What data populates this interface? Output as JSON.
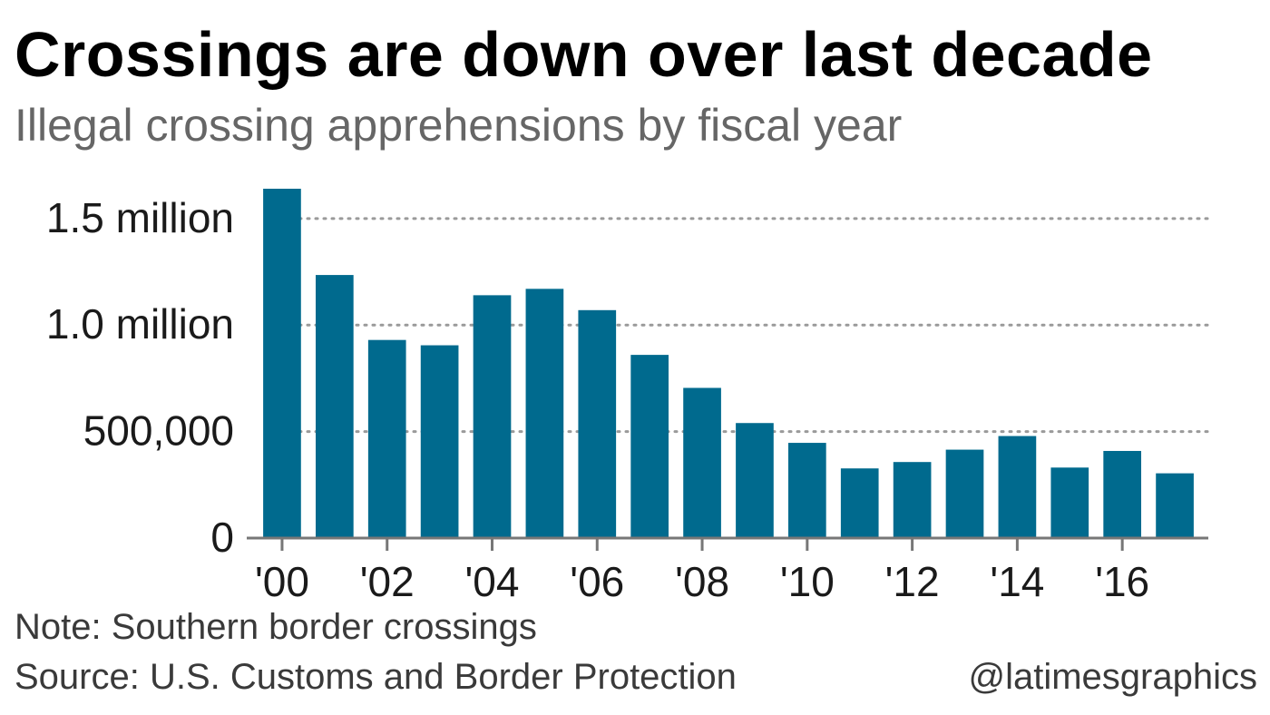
{
  "chart_data": {
    "type": "bar",
    "title": "Crossings are down over last decade",
    "subtitle": "Illegal crossing apprehensions by fiscal year",
    "categories": [
      "2000",
      "2001",
      "2002",
      "2003",
      "2004",
      "2005",
      "2006",
      "2007",
      "2008",
      "2009",
      "2010",
      "2011",
      "2012",
      "2013",
      "2014",
      "2015",
      "2016",
      "2017"
    ],
    "values": [
      1640000,
      1235000,
      930000,
      905000,
      1140000,
      1170000,
      1070000,
      860000,
      705000,
      540000,
      447000,
      327000,
      357000,
      415000,
      479000,
      331000,
      409000,
      304000
    ],
    "x_tick_labels": [
      "'00",
      "'02",
      "'04",
      "'06",
      "'08",
      "'10",
      "'12",
      "'14",
      "'16"
    ],
    "y_ticks": [
      {
        "value": 0,
        "label": "0"
      },
      {
        "value": 500000,
        "label": "500,000"
      },
      {
        "value": 1000000,
        "label": "1.0 million"
      },
      {
        "value": 1500000,
        "label": "1.5 million"
      }
    ],
    "ylim": [
      0,
      1640000
    ],
    "xlabel": "",
    "ylabel": "",
    "grid": "dotted horizontal",
    "bar_color": "#006a8e",
    "note": "Note: Southern border crossings",
    "source": "Source: U.S. Customs and Border Protection",
    "credit": "@latimesgraphics"
  }
}
